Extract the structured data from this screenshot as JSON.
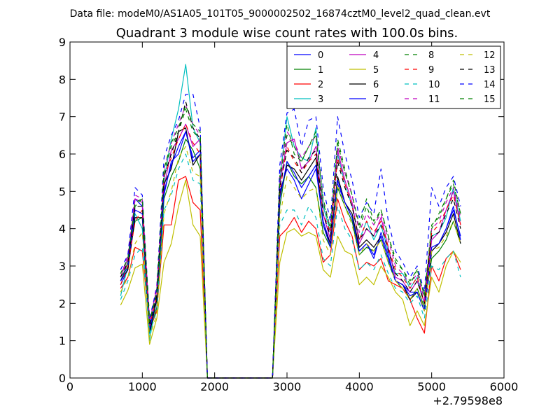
{
  "header": {
    "datafile": "Data file: modeM0/AS1A05_101T05_9000002502_16874cztM0_level2_quad_clean.evt"
  },
  "chart_data": {
    "type": "line",
    "title": "Quadrant 3 module wise count rates with 100.0s bins.",
    "xlabel": "",
    "ylabel": "",
    "x_offset_label": "+2.79598e8",
    "xlim": [
      0,
      6000
    ],
    "ylim": [
      0,
      9
    ],
    "xticks": [
      0,
      1000,
      2000,
      3000,
      4000,
      5000,
      6000
    ],
    "yticks": [
      0,
      1,
      2,
      3,
      4,
      5,
      6,
      7,
      8,
      9
    ],
    "grid": false,
    "legend_position": "top-right",
    "legend_columns": 4,
    "x": [
      700,
      800,
      900,
      1000,
      1100,
      1200,
      1300,
      1400,
      1500,
      1600,
      1700,
      1800,
      1900,
      2000,
      2800,
      2900,
      3000,
      3100,
      3200,
      3300,
      3400,
      3500,
      3600,
      3700,
      3800,
      3900,
      4000,
      4100,
      4200,
      4300,
      4400,
      4500,
      4600,
      4700,
      4800,
      4900,
      5000,
      5100,
      5200,
      5300,
      5400
    ],
    "series": [
      {
        "name": "0",
        "color": "#0000ff",
        "dash": "solid",
        "values": [
          2.5,
          2.9,
          4.8,
          4.6,
          1.4,
          2.1,
          4.9,
          5.8,
          6.0,
          6.6,
          5.9,
          6.1,
          0,
          0,
          0,
          5.0,
          5.6,
          5.3,
          4.8,
          5.2,
          5.6,
          4.2,
          3.6,
          5.2,
          4.7,
          4.3,
          3.4,
          3.6,
          3.2,
          3.9,
          3.3,
          2.6,
          2.5,
          2.3,
          2.3,
          1.8,
          3.4,
          3.6,
          4.0,
          4.6,
          3.7
        ]
      },
      {
        "name": "1",
        "color": "#008000",
        "dash": "solid",
        "values": [
          2.6,
          3.1,
          4.2,
          4.3,
          1.2,
          1.9,
          4.8,
          5.4,
          5.8,
          6.4,
          6.1,
          5.6,
          0,
          0,
          0,
          4.6,
          5.8,
          5.4,
          5.2,
          5.4,
          5.1,
          3.9,
          3.5,
          5.1,
          4.6,
          4.2,
          3.3,
          3.5,
          3.4,
          3.7,
          3.1,
          2.6,
          2.4,
          2.1,
          2.4,
          1.9,
          3.2,
          3.4,
          3.7,
          4.2,
          3.6
        ]
      },
      {
        "name": "2",
        "color": "#ff0000",
        "dash": "solid",
        "values": [
          2.4,
          2.7,
          3.5,
          3.4,
          1.3,
          1.8,
          4.1,
          4.1,
          5.3,
          5.4,
          4.7,
          4.5,
          0,
          0,
          0,
          3.8,
          4.0,
          4.3,
          3.9,
          4.2,
          4.0,
          3.1,
          3.3,
          4.8,
          4.2,
          3.8,
          2.9,
          3.1,
          3.0,
          3.2,
          2.6,
          2.5,
          2.4,
          2.1,
          1.6,
          1.2,
          3.0,
          2.6,
          3.2,
          3.4,
          2.9
        ]
      },
      {
        "name": "3",
        "color": "#00bfbf",
        "dash": "solid",
        "values": [
          2.2,
          3.0,
          4.4,
          4.0,
          1.0,
          2.2,
          5.3,
          6.4,
          7.2,
          8.4,
          6.7,
          6.3,
          0,
          0,
          0,
          5.3,
          7.0,
          6.2,
          5.9,
          5.8,
          6.7,
          4.6,
          3.9,
          6.0,
          5.2,
          4.6,
          3.7,
          4.2,
          3.7,
          4.1,
          3.4,
          2.8,
          2.8,
          2.4,
          2.7,
          2.0,
          3.8,
          3.9,
          4.3,
          5.1,
          4.2
        ]
      },
      {
        "name": "4",
        "color": "#bf00bf",
        "dash": "solid",
        "values": [
          2.7,
          3.2,
          4.8,
          4.7,
          1.5,
          2.4,
          5.1,
          6.1,
          6.4,
          6.8,
          6.2,
          6.4,
          0,
          0,
          0,
          5.2,
          6.3,
          6.4,
          5.6,
          5.8,
          6.2,
          4.4,
          3.7,
          6.1,
          5.3,
          4.7,
          3.6,
          4.0,
          3.8,
          4.3,
          3.5,
          2.7,
          2.6,
          2.3,
          2.6,
          2.0,
          3.7,
          3.9,
          4.5,
          5.0,
          4.1
        ]
      },
      {
        "name": "5",
        "color": "#bfbf00",
        "dash": "solid",
        "values": [
          1.95,
          2.35,
          2.95,
          3.05,
          0.9,
          1.6,
          3.1,
          3.6,
          4.6,
          5.3,
          4.1,
          3.8,
          0,
          0,
          0,
          3.1,
          3.9,
          4.0,
          3.8,
          3.9,
          3.8,
          2.9,
          2.7,
          3.8,
          3.4,
          3.3,
          2.5,
          2.7,
          2.5,
          3.0,
          2.7,
          2.3,
          2.1,
          1.4,
          1.8,
          1.4,
          2.7,
          2.3,
          3.0,
          3.4,
          3.1
        ]
      },
      {
        "name": "6",
        "color": "#000000",
        "dash": "solid",
        "values": [
          2.6,
          2.9,
          4.3,
          4.3,
          1.2,
          2.1,
          5.2,
          5.6,
          6.6,
          6.7,
          5.7,
          6.0,
          0,
          0,
          0,
          4.9,
          5.7,
          5.6,
          5.3,
          5.6,
          5.9,
          4.1,
          3.6,
          5.4,
          4.7,
          4.4,
          3.5,
          3.7,
          3.5,
          3.8,
          3.2,
          2.6,
          2.5,
          2.1,
          2.3,
          1.8,
          3.4,
          3.6,
          3.9,
          4.4,
          3.6
        ]
      },
      {
        "name": "7",
        "color": "#0000ff",
        "dash": "solid",
        "values": [
          2.6,
          3.0,
          4.5,
          4.4,
          1.3,
          2.2,
          5.0,
          5.7,
          6.2,
          6.6,
          5.8,
          6.0,
          0,
          0,
          0,
          4.8,
          5.8,
          5.5,
          5.1,
          5.4,
          5.7,
          4.1,
          3.5,
          5.3,
          4.7,
          4.3,
          3.4,
          3.6,
          3.3,
          3.8,
          3.2,
          2.6,
          2.5,
          2.2,
          2.3,
          1.8,
          3.5,
          3.6,
          4.0,
          4.5,
          3.8
        ]
      },
      {
        "name": "8",
        "color": "#008000",
        "dash": "dashed",
        "values": [
          2.8,
          3.2,
          4.6,
          4.8,
          1.5,
          2.3,
          5.5,
          6.2,
          6.6,
          7.2,
          6.6,
          6.4,
          0,
          0,
          0,
          5.4,
          6.8,
          6.0,
          5.8,
          6.2,
          6.6,
          4.8,
          4.0,
          6.4,
          5.6,
          4.9,
          4.0,
          4.6,
          4.1,
          4.5,
          3.8,
          3.2,
          2.9,
          2.6,
          2.9,
          2.2,
          4.0,
          4.4,
          4.8,
          5.2,
          4.4
        ]
      },
      {
        "name": "9",
        "color": "#ff0000",
        "dash": "dashed",
        "values": [
          2.5,
          3.0,
          4.2,
          4.5,
          1.4,
          2.2,
          5.4,
          5.9,
          6.4,
          6.8,
          6.3,
          6.0,
          0,
          0,
          0,
          5.0,
          6.2,
          5.8,
          5.5,
          5.8,
          6.0,
          4.4,
          3.9,
          5.9,
          5.2,
          4.6,
          3.7,
          4.2,
          3.9,
          4.2,
          3.5,
          2.9,
          2.7,
          2.4,
          2.7,
          2.0,
          3.9,
          4.1,
          4.5,
          4.9,
          4.1
        ]
      },
      {
        "name": "10",
        "color": "#00bfbf",
        "dash": "dashed",
        "values": [
          2.1,
          2.6,
          3.3,
          3.5,
          1.2,
          1.8,
          4.5,
          4.9,
          5.6,
          6.0,
          5.3,
          5.2,
          0,
          0,
          0,
          4.1,
          4.5,
          4.5,
          4.1,
          4.6,
          4.3,
          3.2,
          3.0,
          4.6,
          4.0,
          3.7,
          2.9,
          3.1,
          2.9,
          3.3,
          2.8,
          2.4,
          2.3,
          2.0,
          2.2,
          1.6,
          3.0,
          2.9,
          3.2,
          3.4,
          2.7
        ]
      },
      {
        "name": "11",
        "color": "#bf00bf",
        "dash": "dashed",
        "values": [
          2.7,
          3.3,
          4.9,
          4.8,
          1.5,
          2.5,
          5.6,
          6.3,
          6.8,
          7.3,
          6.8,
          6.5,
          0,
          0,
          0,
          5.5,
          6.6,
          6.3,
          5.9,
          6.2,
          6.5,
          4.7,
          4.0,
          6.2,
          5.5,
          4.9,
          3.9,
          4.4,
          4.1,
          4.4,
          3.7,
          3.0,
          2.8,
          2.5,
          2.8,
          2.1,
          4.0,
          4.2,
          4.7,
          5.1,
          4.3
        ]
      },
      {
        "name": "12",
        "color": "#bfbf00",
        "dash": "dashed",
        "values": [
          2.3,
          2.7,
          3.6,
          3.9,
          1.1,
          1.7,
          4.4,
          5.0,
          5.9,
          6.2,
          5.5,
          5.4,
          0,
          0,
          0,
          4.3,
          5.4,
          5.1,
          4.8,
          5.0,
          5.1,
          3.7,
          3.3,
          5.2,
          4.6,
          4.1,
          3.3,
          3.6,
          3.4,
          3.7,
          3.1,
          2.6,
          2.4,
          2.1,
          2.4,
          1.8,
          3.4,
          3.5,
          3.8,
          4.2,
          3.6
        ]
      },
      {
        "name": "13",
        "color": "#000000",
        "dash": "dashed",
        "values": [
          2.7,
          3.1,
          4.6,
          4.6,
          1.4,
          2.2,
          5.4,
          6.0,
          6.6,
          7.4,
          6.7,
          6.4,
          0,
          0,
          0,
          5.1,
          6.1,
          5.9,
          5.5,
          5.9,
          6.1,
          4.4,
          3.8,
          5.8,
          5.1,
          4.6,
          3.7,
          4.0,
          3.8,
          4.1,
          3.4,
          2.8,
          2.6,
          2.3,
          2.6,
          2.0,
          3.8,
          3.9,
          4.4,
          4.8,
          4.0
        ]
      },
      {
        "name": "14",
        "color": "#0000ff",
        "dash": "dashed",
        "values": [
          2.9,
          3.3,
          5.1,
          4.9,
          1.6,
          2.4,
          5.9,
          6.5,
          6.9,
          7.6,
          7.6,
          6.7,
          0,
          0,
          0,
          5.7,
          7.1,
          7.2,
          6.2,
          6.9,
          7.0,
          5.1,
          4.2,
          7.0,
          6.0,
          5.3,
          4.3,
          4.7,
          4.4,
          5.6,
          4.2,
          3.4,
          3.1,
          2.7,
          3.0,
          2.3,
          5.1,
          4.6,
          5.1,
          5.4,
          4.6
        ]
      },
      {
        "name": "15",
        "color": "#008000",
        "dash": "dashed",
        "values": [
          2.8,
          3.2,
          4.7,
          4.8,
          1.5,
          2.3,
          5.6,
          6.3,
          6.7,
          7.3,
          6.8,
          6.6,
          0,
          0,
          0,
          5.3,
          6.5,
          6.2,
          5.8,
          6.2,
          6.5,
          4.7,
          4.0,
          6.3,
          5.5,
          4.9,
          4.1,
          4.8,
          4.2,
          4.5,
          3.8,
          3.1,
          2.9,
          2.5,
          2.9,
          2.2,
          4.1,
          4.3,
          4.8,
          5.3,
          4.4
        ]
      }
    ]
  }
}
